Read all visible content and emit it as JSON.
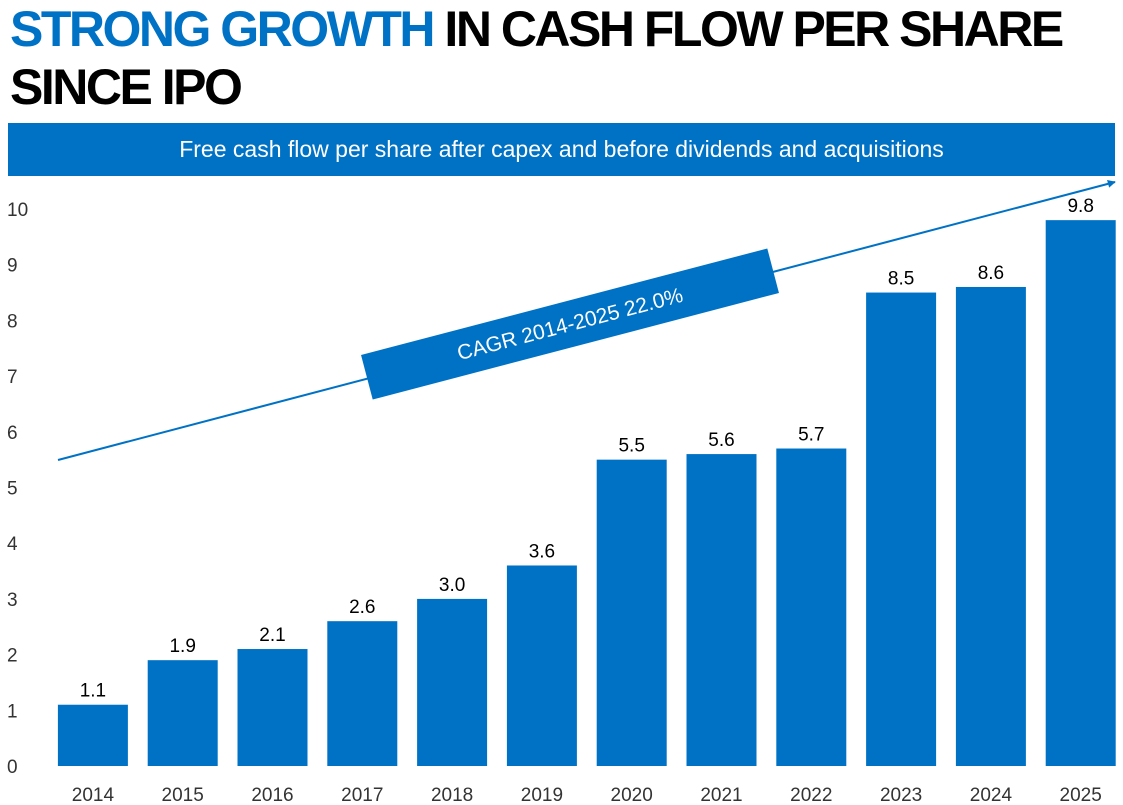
{
  "header": {
    "title_highlight": "STRONG GROWTH",
    "title_rest": " IN CASH FLOW PER SHARE SINCE IPO",
    "subtitle": "Free cash flow per share after capex and before dividends and acquisitions"
  },
  "colors": {
    "accent": "#0072C6",
    "bar": "#0072C6",
    "text": "#000000"
  },
  "chart_data": {
    "type": "bar",
    "title": "Free cash flow per share after capex and before dividends and acquisitions",
    "categories": [
      "2014",
      "2015",
      "2016",
      "2017",
      "2018",
      "2019",
      "2020",
      "2021",
      "2022",
      "2023",
      "2024",
      "2025"
    ],
    "values": [
      1.1,
      1.9,
      2.1,
      2.6,
      3.0,
      3.6,
      5.5,
      5.6,
      5.7,
      8.5,
      8.6,
      9.8
    ],
    "value_labels": [
      "1.1",
      "1.9",
      "2.1",
      "2.6",
      "3.0",
      "3.6",
      "5.5",
      "5.6",
      "5.7",
      "8.5",
      "8.6",
      "9.8"
    ],
    "yticks": [
      0,
      1,
      2,
      3,
      4,
      5,
      6,
      7,
      8,
      9,
      10
    ],
    "ylim": [
      0,
      10
    ],
    "xlabel": "",
    "ylabel": "",
    "grid": false,
    "annotation": {
      "text": "CAGR 2014-2025 22.0%",
      "type": "trend-arrow"
    }
  }
}
